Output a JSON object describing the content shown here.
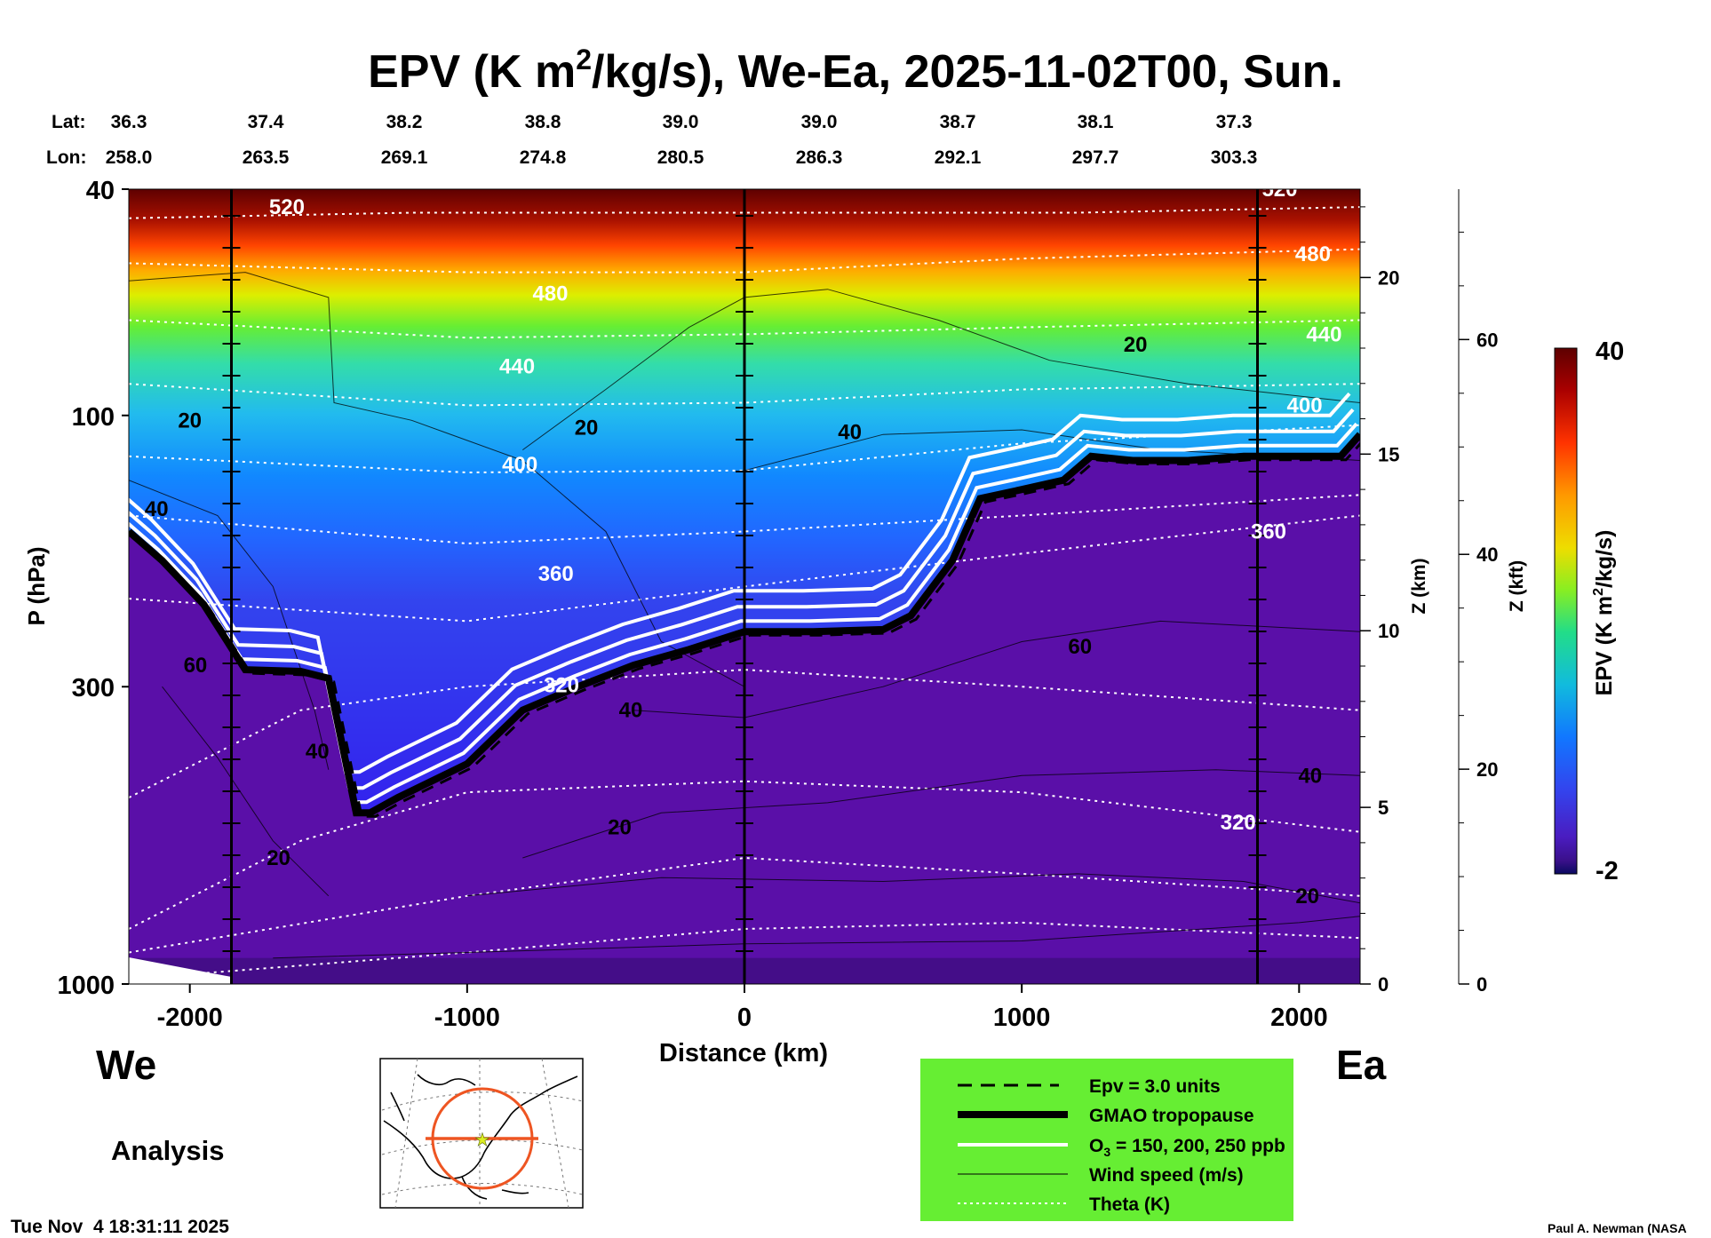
{
  "title": {
    "prefix": "EPV (K m",
    "sup": "2",
    "suffix": "/kg/s), We-Ea, 2025-11-02T00, Sun."
  },
  "lat_label": "Lat:",
  "lon_label": "Lon:",
  "lat_values": [
    "36.3",
    "37.4",
    "38.2",
    "38.8",
    "39.0",
    "39.0",
    "38.7",
    "38.1",
    "37.3"
  ],
  "lon_values": [
    "258.0",
    "263.5",
    "269.1",
    "274.8",
    "280.5",
    "286.3",
    "292.1",
    "297.7",
    "303.3"
  ],
  "side_labels": {
    "left": "We",
    "right": "Ea"
  },
  "analysis_label": "Analysis",
  "timestamp": "Tue Nov  4 18:31:11 2025",
  "credit": "Paul A. Newman (NASA",
  "legend": [
    {
      "label": "Epv = 3.0 units",
      "style": "dashed"
    },
    {
      "label": "GMAO tropopause",
      "style": "thick"
    },
    {
      "label_prefix": "O",
      "label_sub": "3",
      "label_suffix": " = 150, 200, 250 ppb",
      "style": "white"
    },
    {
      "label": "Wind speed (m/s)",
      "style": "thin"
    },
    {
      "label": "Theta (K)",
      "style": "dotted"
    }
  ],
  "colorbar": {
    "label_prefix": "EPV (K m",
    "label_sup": "2",
    "label_suffix": "/kg/s)",
    "max_label": "40",
    "min_label": "-2",
    "min": -2,
    "max": 40
  },
  "colors": {
    "legend_bg": "#66ee33",
    "map_ring": "#ee5522",
    "plot_bg_low": "#5a0fa8"
  },
  "chart_data": {
    "type": "heatmap",
    "title": "EPV (K m2/kg/s), We-Ea, 2025-11-02T00, Sun.",
    "xlabel": "Distance (km)",
    "ylabel": "P (hPa)",
    "xlim": [
      -2220,
      2220
    ],
    "ylim": [
      1000,
      40
    ],
    "y_scale": "log",
    "x_ticks": [
      -2000,
      -1000,
      0,
      1000,
      2000
    ],
    "x_tick_labels": [
      "-2000",
      "-1000",
      "0",
      "1000",
      "2000"
    ],
    "y_ticks": [
      40,
      100,
      300,
      1000
    ],
    "y_tick_labels": [
      "40",
      "100",
      "300",
      "1000"
    ],
    "z_km_label": "Z (km)",
    "z_km_ticks": [
      0,
      5,
      10,
      15,
      20
    ],
    "z_kft_label": "Z (kft)",
    "z_kft_ticks": [
      0,
      20,
      40,
      60
    ],
    "vertical_markers_km": [
      -1850,
      0,
      1850
    ],
    "tropopause": {
      "x": [
        -2220,
        -2100,
        -1950,
        -1800,
        -1600,
        -1500,
        -1400,
        -1350,
        -1250,
        -1000,
        -800,
        -600,
        -400,
        -200,
        0,
        250,
        500,
        600,
        750,
        850,
        1000,
        1150,
        1250,
        1400,
        1600,
        1800,
        2000,
        2150,
        2220
      ],
      "p": [
        160,
        180,
        215,
        280,
        282,
        290,
        500,
        500,
        470,
        410,
        330,
        300,
        275,
        258,
        240,
        240,
        238,
        225,
        180,
        140,
        135,
        130,
        118,
        120,
        120,
        118,
        118,
        118,
        108
      ]
    },
    "theta_contours": [
      {
        "value": 520,
        "label_x": -1650,
        "label_p": 43
      },
      {
        "value": 480,
        "label_x": -700,
        "label_p": 61
      },
      {
        "value": 440,
        "label_x": -820,
        "label_p": 82
      },
      {
        "value": 400,
        "label_x": -810,
        "label_p": 122
      },
      {
        "value": 360,
        "label_x": -680,
        "label_p": 190
      },
      {
        "value": 320,
        "label_x": -660,
        "label_p": 298
      },
      {
        "value": 480,
        "label_x": 2050,
        "label_p": 52
      },
      {
        "value": 440,
        "label_x": 2090,
        "label_p": 72
      },
      {
        "value": 400,
        "label_x": 2020,
        "label_p": 96
      },
      {
        "value": 360,
        "label_x": 1890,
        "label_p": 160
      },
      {
        "value": 320,
        "label_x": 1780,
        "label_p": 520
      },
      {
        "value": 520,
        "label_x": 1930,
        "label_p": 40
      }
    ],
    "wind_labels": [
      {
        "value": 20,
        "label_x": -2000,
        "label_p": 102
      },
      {
        "value": 40,
        "label_x": -2120,
        "label_p": 146
      },
      {
        "value": 60,
        "label_x": -1980,
        "label_p": 275
      },
      {
        "value": 40,
        "label_x": -1540,
        "label_p": 390
      },
      {
        "value": 20,
        "label_x": -1680,
        "label_p": 600
      },
      {
        "value": 20,
        "label_x": -570,
        "label_p": 105
      },
      {
        "value": 40,
        "label_x": -410,
        "label_p": 330
      },
      {
        "value": 20,
        "label_x": -450,
        "label_p": 530
      },
      {
        "value": 40,
        "label_x": 380,
        "label_p": 107
      },
      {
        "value": 20,
        "label_x": 1410,
        "label_p": 75
      },
      {
        "value": 60,
        "label_x": 1210,
        "label_p": 255
      },
      {
        "value": 40,
        "label_x": 2040,
        "label_p": 430
      },
      {
        "value": 20,
        "label_x": 2030,
        "label_p": 700
      }
    ]
  }
}
